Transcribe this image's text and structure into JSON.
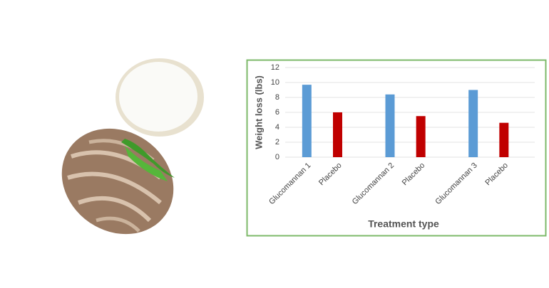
{
  "chart_data": {
    "type": "bar",
    "x_label": "Treatment type",
    "y_label": "Weight loss (lbs)",
    "categories": [
      "Glucomannan 1",
      "Placebo",
      "Glucomannan 2",
      "Placebo",
      "Glucomannan 3",
      "Placebo"
    ],
    "values": [
      9.7,
      6.0,
      8.4,
      5.5,
      9.0,
      4.6
    ],
    "colors": [
      "#5b9bd5",
      "#c00000",
      "#5b9bd5",
      "#c00000",
      "#5b9bd5",
      "#c00000"
    ],
    "ylim": [
      0,
      12
    ],
    "yticks": [
      0,
      2,
      4,
      6,
      8,
      10,
      12
    ],
    "grid": true
  }
}
